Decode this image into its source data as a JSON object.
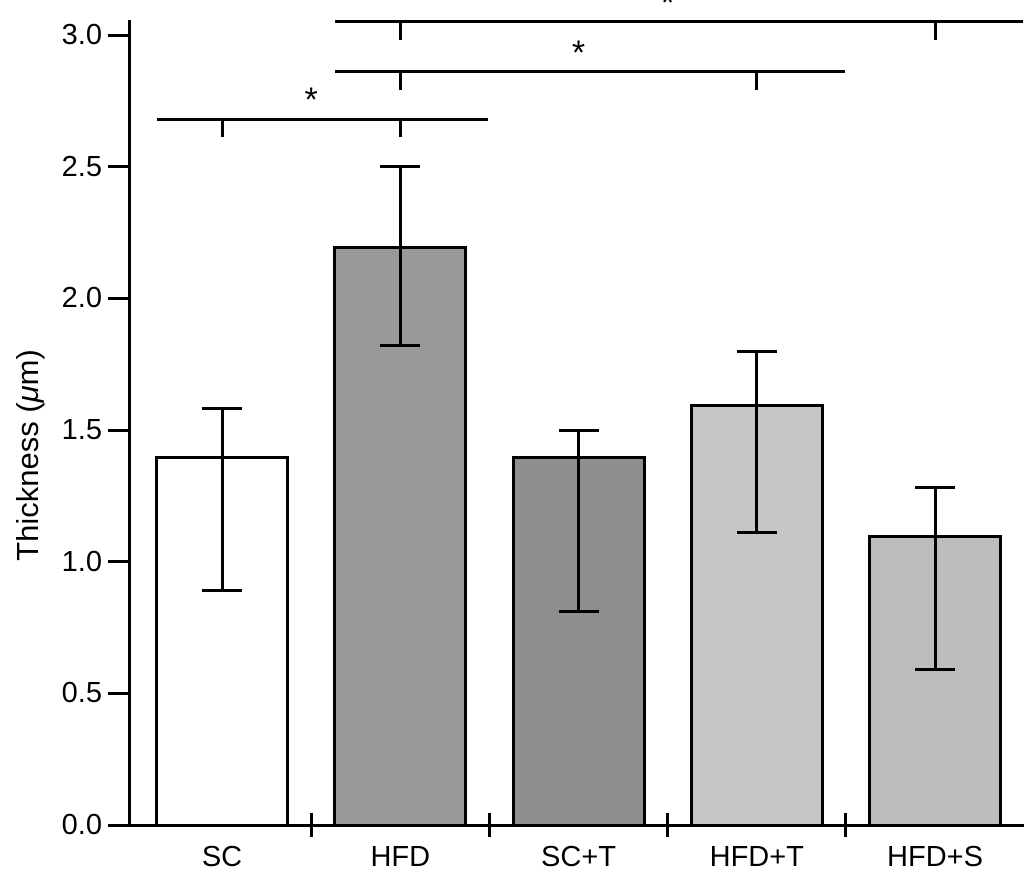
{
  "chart_data": {
    "type": "bar",
    "title": "",
    "xlabel": "",
    "ylabel": "Thickness (μm)",
    "ylabel_parts": {
      "prefix": "Thickness (",
      "mu": "μ",
      "suffix": "m)"
    },
    "ylim": [
      0.0,
      3.0
    ],
    "ytick_labels": [
      "0.0",
      "0.5",
      "1.0",
      "1.5",
      "2.0",
      "2.5",
      "3.0"
    ],
    "grid": "off",
    "legend": "none",
    "categories": [
      "SC",
      "HFD",
      "SC+T",
      "HFD+T",
      "HFD+S"
    ],
    "values": [
      1.4,
      2.2,
      1.4,
      1.6,
      1.1
    ],
    "error_upper": [
      1.58,
      2.5,
      1.5,
      1.8,
      1.28
    ],
    "error_lower": [
      0.89,
      1.82,
      0.81,
      1.11,
      0.59
    ],
    "bar_colors": [
      "#ffffff",
      "#999999",
      "#8e8e8e",
      "#c6c6c6",
      "#bdbdbd"
    ],
    "bar_edge_color": "#000000",
    "significance": [
      {
        "from": "SC",
        "to": "HFD",
        "level": 2.68,
        "label": "*"
      },
      {
        "from": "HFD",
        "to": "HFD+T",
        "level": 2.86,
        "label": "*"
      },
      {
        "from": "HFD",
        "to": "HFD+S",
        "level": 3.05,
        "label": "*"
      }
    ]
  }
}
